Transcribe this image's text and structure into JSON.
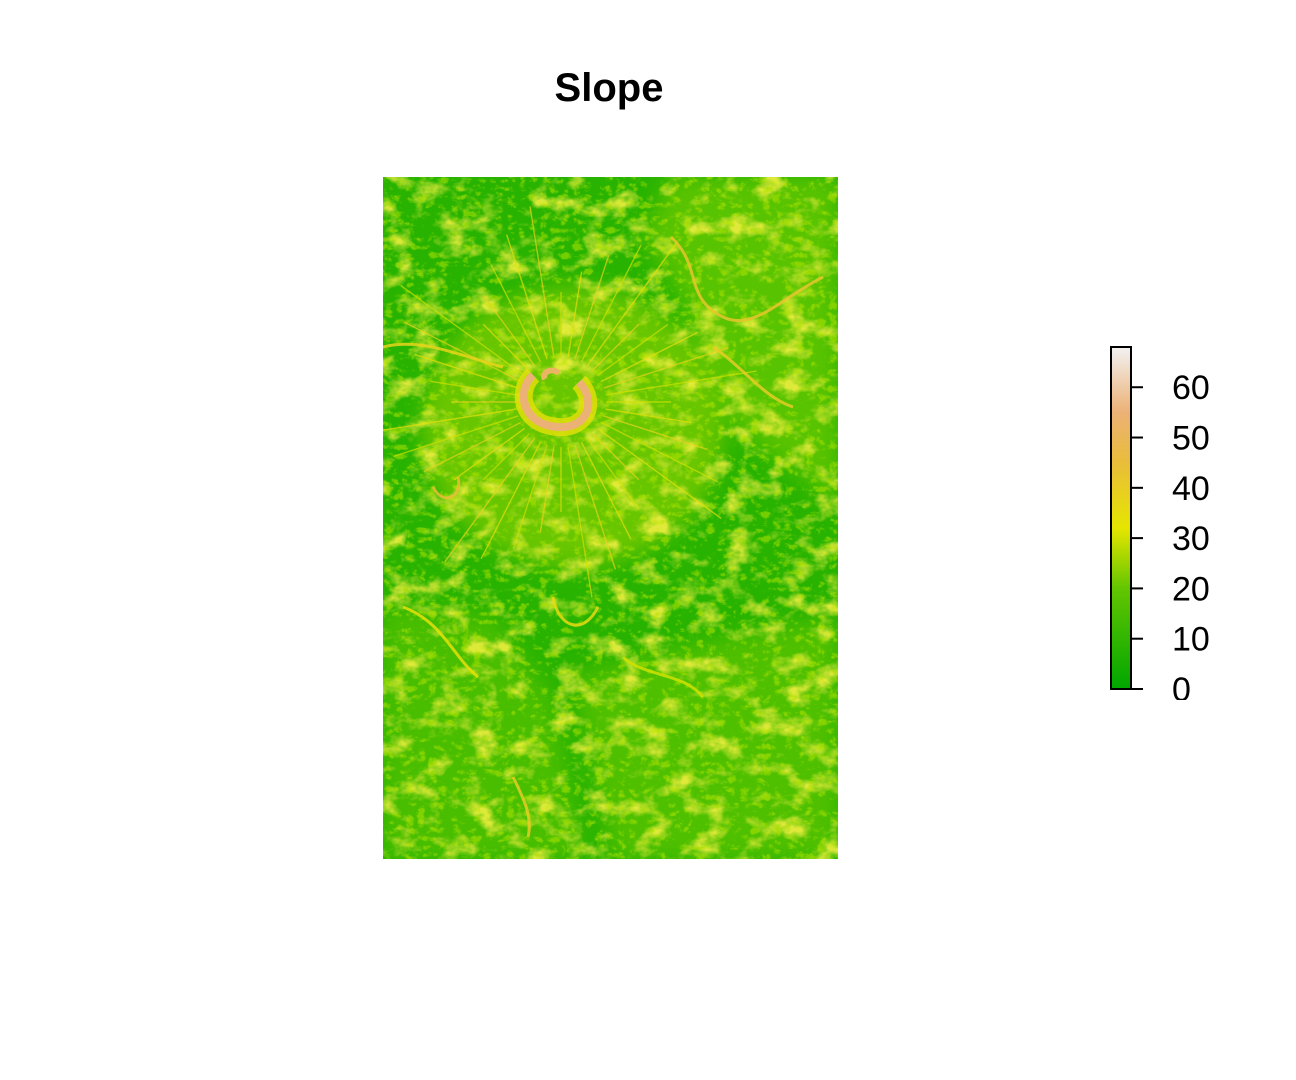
{
  "chart_data": {
    "type": "heatmap",
    "title": "Slope",
    "xlabel": "",
    "ylabel": "",
    "legend": {
      "placement": "right",
      "range": [
        0,
        68
      ],
      "ticks": [
        0,
        10,
        20,
        30,
        40,
        50,
        60
      ],
      "tick_labels": [
        "0",
        "10",
        "20",
        "30",
        "40",
        "50",
        "60"
      ],
      "colormap": "terrain",
      "color_stops": [
        {
          "value": 0,
          "color": "#00A600"
        },
        {
          "value": 20,
          "color": "#63C600"
        },
        {
          "value": 32,
          "color": "#E6E600"
        },
        {
          "value": 45,
          "color": "#E9BD3A"
        },
        {
          "value": 55,
          "color": "#ECB176"
        },
        {
          "value": 68,
          "color": "#F2F2F2"
        }
      ]
    },
    "raster": {
      "background_value": 8,
      "description_features": "volcanic crater rim near upper center with highest slopes"
    }
  }
}
